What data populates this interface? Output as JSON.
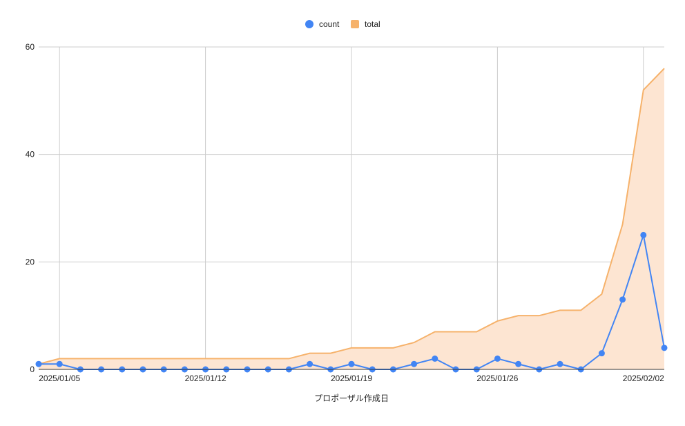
{
  "chart_data": {
    "type": "line",
    "title": "",
    "xlabel": "プロポーザル作成日",
    "ylabel": "",
    "x": [
      "2025/01/04",
      "2025/01/05",
      "2025/01/06",
      "2025/01/07",
      "2025/01/08",
      "2025/01/09",
      "2025/01/10",
      "2025/01/11",
      "2025/01/12",
      "2025/01/13",
      "2025/01/14",
      "2025/01/15",
      "2025/01/16",
      "2025/01/17",
      "2025/01/18",
      "2025/01/19",
      "2025/01/20",
      "2025/01/21",
      "2025/01/22",
      "2025/01/23",
      "2025/01/24",
      "2025/01/25",
      "2025/01/26",
      "2025/01/27",
      "2025/01/28",
      "2025/01/29",
      "2025/01/30",
      "2025/01/31",
      "2025/02/01",
      "2025/02/02",
      "2025/02/03"
    ],
    "x_ticks": [
      "2025/01/05",
      "2025/01/12",
      "2025/01/19",
      "2025/01/26",
      "2025/02/02"
    ],
    "ylim": [
      0,
      60
    ],
    "y_ticks": [
      0,
      20,
      40,
      60
    ],
    "grid": true,
    "legend_position": "top",
    "series": [
      {
        "name": "count",
        "type": "line",
        "color": "#4285F4",
        "values": [
          1,
          1,
          0,
          0,
          0,
          0,
          0,
          0,
          0,
          0,
          0,
          0,
          0,
          1,
          0,
          1,
          0,
          0,
          1,
          2,
          0,
          0,
          2,
          1,
          0,
          1,
          0,
          3,
          13,
          25,
          4
        ]
      },
      {
        "name": "total",
        "type": "area",
        "color": "#F6B26B",
        "fill": "#FDE5D2",
        "values": [
          1,
          2,
          2,
          2,
          2,
          2,
          2,
          2,
          2,
          2,
          2,
          2,
          2,
          3,
          3,
          4,
          4,
          4,
          5,
          7,
          7,
          7,
          9,
          10,
          10,
          11,
          11,
          14,
          27,
          52,
          56
        ]
      }
    ]
  }
}
